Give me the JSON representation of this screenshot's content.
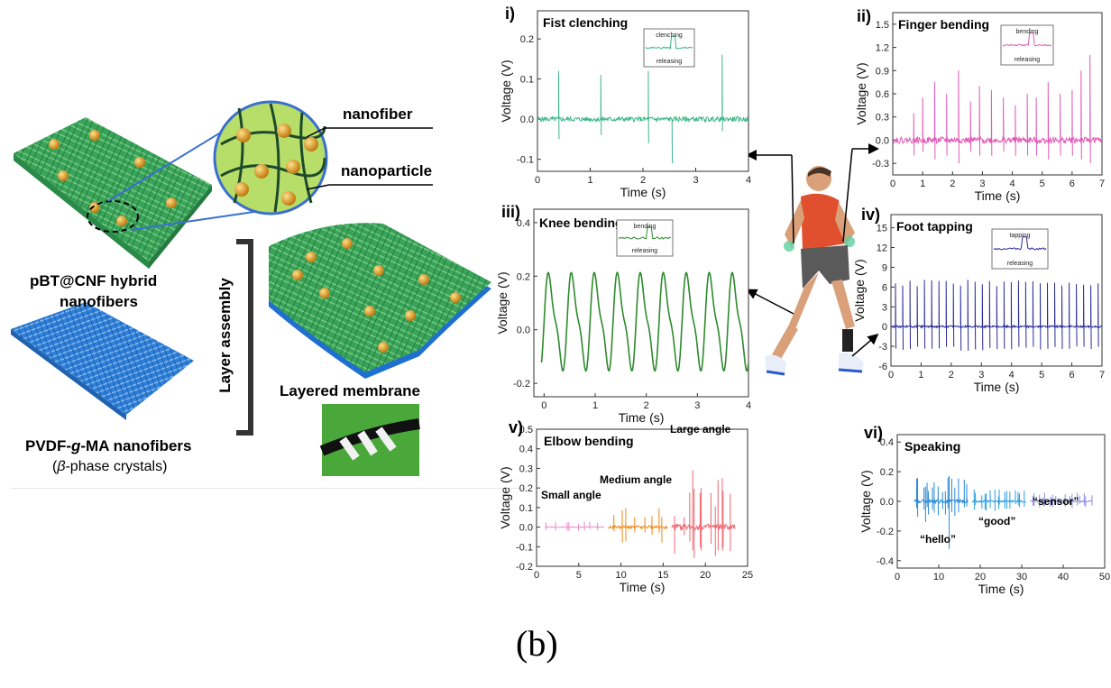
{
  "left_panel": {
    "label_nanofiber": "nanofiber",
    "label_nanoparticle": "nanoparticle",
    "label_hybrid_line1": "pBT@CNF hybrid",
    "label_hybrid_line2": "nanofibers",
    "label_layer_assembly": "Layer assembly",
    "label_layered_membrane": "Layered membrane",
    "label_pvdf_pre": "PVDF-",
    "label_pvdf_g": "g",
    "label_pvdf_post": "-MA nanofibers",
    "label_beta_pre": "(",
    "label_beta_sym": "β",
    "label_beta_post": "-phase crystals)",
    "colors": {
      "hybrid_fiber": "#2fa85a",
      "nanoparticle": "#d99a2b",
      "pvdf_fiber": "#2d7fd6",
      "zoom_bg": "#b8de6a"
    }
  },
  "caption": "(b)",
  "chart_data": [
    {
      "id": "i",
      "panel_label": "i)",
      "title": "Fist clenching",
      "type": "line",
      "xlabel": "Time (s)",
      "ylabel": "Voltage (V)",
      "xlim": [
        0,
        4
      ],
      "ylim": [
        -0.13,
        0.27
      ],
      "xticks": [
        "0",
        "1",
        "2",
        "3",
        "4"
      ],
      "yticks": [
        "-0.1",
        "0.0",
        "0.1",
        "0.2"
      ],
      "color": "#3fb58a",
      "baseline": 0.0,
      "noise": 0.006,
      "spikes": [
        {
          "x": 0.4,
          "up": 0.12,
          "down": -0.05
        },
        {
          "x": 1.2,
          "up": 0.11,
          "down": -0.04
        },
        {
          "x": 2.1,
          "up": 0.12,
          "down": -0.06
        },
        {
          "x": 2.55,
          "up": 0.0,
          "down": -0.11
        },
        {
          "x": 3.5,
          "up": 0.16,
          "down": -0.03
        }
      ],
      "inset": {
        "top_label": "clenching",
        "bottom_label": "releasing"
      }
    },
    {
      "id": "ii",
      "panel_label": "ii)",
      "title": "Finger bending",
      "type": "line",
      "xlabel": "Time (s)",
      "ylabel": "Voltage (V)",
      "xlim": [
        0,
        7
      ],
      "ylim": [
        -0.45,
        1.65
      ],
      "xticks": [
        "0",
        "1",
        "2",
        "3",
        "4",
        "5",
        "6",
        "7"
      ],
      "yticks": [
        "-0.3",
        "0.0",
        "0.3",
        "0.6",
        "0.9",
        "1.2",
        "1.5"
      ],
      "color": "#e05ab5",
      "baseline": 0.0,
      "noise": 0.04,
      "spikes": [
        {
          "x": 0.7,
          "up": 0.35,
          "down": -0.2
        },
        {
          "x": 1.0,
          "up": 0.55,
          "down": -0.15
        },
        {
          "x": 1.4,
          "up": 0.75,
          "down": -0.25
        },
        {
          "x": 1.8,
          "up": 0.6,
          "down": -0.2
        },
        {
          "x": 2.2,
          "up": 0.9,
          "down": -0.3
        },
        {
          "x": 2.6,
          "up": 0.5,
          "down": -0.15
        },
        {
          "x": 2.9,
          "up": 0.7,
          "down": -0.2
        },
        {
          "x": 3.3,
          "up": 0.65,
          "down": -0.2
        },
        {
          "x": 3.7,
          "up": 0.55,
          "down": -0.15
        },
        {
          "x": 4.1,
          "up": 0.45,
          "down": -0.2
        },
        {
          "x": 4.5,
          "up": 0.6,
          "down": -0.2
        },
        {
          "x": 4.8,
          "up": 0.55,
          "down": -0.2
        },
        {
          "x": 5.2,
          "up": 0.75,
          "down": -0.25
        },
        {
          "x": 5.6,
          "up": 0.6,
          "down": -0.2
        },
        {
          "x": 6.0,
          "up": 0.65,
          "down": -0.2
        },
        {
          "x": 6.3,
          "up": 0.9,
          "down": -0.25
        },
        {
          "x": 6.6,
          "up": 1.1,
          "down": -0.3
        }
      ],
      "inset": {
        "top_label": "bending",
        "bottom_label": "releasing"
      }
    },
    {
      "id": "iii",
      "panel_label": "iii)",
      "title": "Knee bending",
      "type": "line",
      "xlabel": "Time (s)",
      "ylabel": "Voltage (V)",
      "xlim": [
        -0.2,
        4
      ],
      "ylim": [
        -0.25,
        0.45
      ],
      "xticks": [
        "0",
        "1",
        "2",
        "3",
        "4"
      ],
      "yticks": [
        "-0.2",
        "0.0",
        "0.2",
        "0.4"
      ],
      "color": "#2f8a2f",
      "wave": true,
      "inset": {
        "top_label": "bending",
        "bottom_label": "releasing"
      }
    },
    {
      "id": "iv",
      "panel_label": "iv)",
      "title": "Foot tapping",
      "type": "line",
      "xlabel": "Time (s)",
      "ylabel": "Voltage (V)",
      "xlim": [
        0,
        7
      ],
      "ylim": [
        -6,
        17
      ],
      "xticks": [
        "0",
        "1",
        "2",
        "3",
        "4",
        "5",
        "6",
        "7"
      ],
      "yticks": [
        "-6",
        "-3",
        "0",
        "3",
        "6",
        "9",
        "12",
        "15"
      ],
      "color": "#2a2a9a",
      "baseline": 0.0,
      "noise": 0.15,
      "spike_train": {
        "start": 0.15,
        "step": 0.24,
        "up": 6.8,
        "down": -3.5
      },
      "inset": {
        "top_label": "tapping",
        "bottom_label": "releasing"
      }
    },
    {
      "id": "v",
      "panel_label": "v)",
      "title": "Elbow bending",
      "type": "line",
      "xlabel": "Time (s)",
      "ylabel": "Voltage (V)",
      "xlim": [
        0,
        25
      ],
      "ylim": [
        -0.2,
        0.5
      ],
      "xticks": [
        "0",
        "5",
        "10",
        "15",
        "20",
        "25"
      ],
      "yticks": [
        "-0.2",
        "-0.1",
        "0.0",
        "0.1",
        "0.2",
        "0.3",
        "0.4",
        "0.5"
      ],
      "segments": [
        {
          "x0": 1,
          "x1": 8,
          "color": "#f08ac8",
          "amp": 0.015
        },
        {
          "x0": 8.5,
          "x1": 15.5,
          "color": "#f08a1a",
          "amp": 0.05
        },
        {
          "x0": 16,
          "x1": 23.5,
          "color": "#ef6a74",
          "amp": 0.1
        }
      ],
      "annotations": [
        "Small angle",
        "Medium angle",
        "Large angle"
      ]
    },
    {
      "id": "vi",
      "panel_label": "vi)",
      "title": "Speaking",
      "type": "line",
      "xlabel": "Time (s)",
      "ylabel": "Voltage (V)",
      "xlim": [
        0,
        50
      ],
      "ylim": [
        -0.45,
        0.45
      ],
      "xticks": [
        "0",
        "10",
        "20",
        "30",
        "40",
        "50"
      ],
      "yticks": [
        "-0.4",
        "-0.2",
        "0.0",
        "0.2",
        "0.4"
      ],
      "segments": [
        {
          "x0": 4,
          "x1": 17,
          "color": "#2b8ad6",
          "amp": 0.08
        },
        {
          "x0": 18,
          "x1": 31,
          "color": "#2aa0e0",
          "amp": 0.04
        },
        {
          "x0": 32,
          "x1": 47,
          "color": "#8e8ee0",
          "amp": 0.03
        }
      ],
      "annotations": [
        "“hello”",
        "“good”",
        "“sensor”"
      ]
    }
  ]
}
